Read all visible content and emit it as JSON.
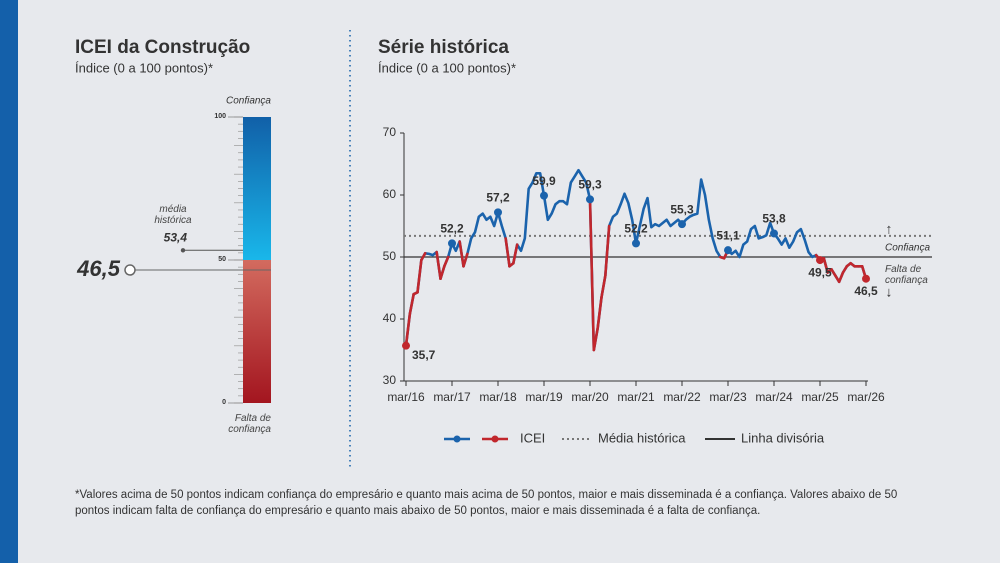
{
  "chart_data": [
    {
      "type": "gauge",
      "title": "ICEI da Construção",
      "subtitle": "Índice (0 a 100 pontos)*",
      "ylim": [
        0,
        100
      ],
      "yticks": [
        0,
        50,
        100
      ],
      "value": 46.5,
      "value_label": "46,5",
      "value_color": "#c1272d",
      "average": {
        "label": "média histórica",
        "value": 53.4,
        "value_label": "53,4"
      },
      "upper_label": "Confiança",
      "lower_label": "Falta de confiança",
      "upper_color": "#1160a8",
      "lower_color": "#b3262d"
    },
    {
      "type": "line",
      "title": "Série histórica",
      "subtitle": "Índice (0 a 100 pontos)*",
      "categories": [
        "mar/16",
        null,
        null,
        null,
        null,
        null,
        null,
        null,
        null,
        null,
        null,
        null,
        "mar/17",
        null,
        null,
        null,
        null,
        null,
        null,
        null,
        null,
        null,
        null,
        null,
        "mar/18",
        null,
        null,
        null,
        null,
        null,
        null,
        null,
        null,
        null,
        null,
        null,
        "mar/19",
        null,
        null,
        null,
        null,
        null,
        null,
        null,
        null,
        null,
        null,
        null,
        "mar/20",
        null,
        null,
        null,
        null,
        null,
        null,
        null,
        null,
        null,
        null,
        null,
        "mar/21",
        null,
        null,
        null,
        null,
        null,
        null,
        null,
        null,
        null,
        null,
        null,
        "mar/22",
        null,
        null,
        null,
        null,
        null,
        null,
        null,
        null,
        null,
        null,
        null,
        "mar/23",
        null,
        null,
        null,
        null,
        null,
        null,
        null,
        null,
        null,
        null,
        null,
        "mar/24",
        null,
        null,
        null,
        null,
        null,
        null,
        null,
        null,
        null,
        null,
        null,
        "mar/25",
        null,
        null,
        null,
        null,
        null,
        null,
        null,
        null,
        null,
        null,
        null,
        "mar/26"
      ],
      "series": [
        {
          "name": "ICEI",
          "color": "#1b63ac",
          "color_below": "#c1272d",
          "values": [
            35.7,
            40.8,
            44,
            44.3,
            49.5,
            50.6,
            50.5,
            50.3,
            50.8,
            46.5,
            48.5,
            50,
            52.2,
            51,
            52.5,
            48.5,
            50.5,
            53,
            54,
            56.5,
            57,
            56,
            56.5,
            55,
            57.2,
            55,
            53,
            48.5,
            49,
            52,
            51,
            53,
            61,
            62,
            63.5,
            63.5,
            59.9,
            56,
            57,
            58.5,
            59,
            59,
            58.5,
            62,
            63,
            64,
            63,
            62,
            59.3,
            35,
            38.5,
            43.5,
            47,
            55,
            56.5,
            57,
            58.5,
            60.2,
            58.7,
            56,
            52.2,
            55,
            57.8,
            59.5,
            54.8,
            55.3,
            55,
            55.5,
            56,
            55,
            55.5,
            56,
            55.3,
            56,
            56.5,
            56.8,
            57,
            62.5,
            60,
            56,
            53,
            51,
            50,
            49.8,
            51.1,
            50.5,
            51,
            50,
            52,
            52.5,
            54.5,
            55,
            53,
            53.2,
            53.5,
            55.5,
            53.8,
            53,
            52,
            53,
            51.5,
            52.5,
            54,
            54.5,
            52.8,
            50.8,
            50,
            50.3,
            49.5,
            49.8,
            47.5,
            48,
            47,
            46,
            47.5,
            48.5,
            49,
            48.5,
            48.5,
            48.5,
            46.5
          ],
          "value_labels": [
            "35,7",
            null,
            null,
            null,
            null,
            null,
            null,
            null,
            null,
            null,
            null,
            null,
            "52,2",
            null,
            null,
            null,
            null,
            null,
            null,
            null,
            null,
            null,
            null,
            null,
            "57,2",
            null,
            null,
            null,
            null,
            null,
            null,
            null,
            null,
            null,
            null,
            null,
            "59,9",
            null,
            null,
            null,
            null,
            null,
            null,
            null,
            null,
            null,
            null,
            null,
            "59,3",
            null,
            null,
            null,
            null,
            null,
            null,
            null,
            null,
            null,
            null,
            null,
            "52,2",
            null,
            null,
            null,
            null,
            null,
            null,
            null,
            null,
            null,
            null,
            null,
            "55,3",
            null,
            null,
            null,
            null,
            null,
            null,
            null,
            null,
            null,
            null,
            null,
            "51,1",
            null,
            null,
            null,
            null,
            null,
            null,
            null,
            null,
            null,
            null,
            null,
            "53,8",
            null,
            null,
            null,
            null,
            null,
            null,
            null,
            null,
            null,
            null,
            null,
            "49,5",
            null,
            null,
            null,
            null,
            null,
            null,
            null,
            null,
            null,
            null,
            null,
            "46,5"
          ]
        }
      ],
      "reference_lines": [
        {
          "name": "Média histórica",
          "value": 53.4,
          "style": "dotted",
          "color": "#777777"
        },
        {
          "name": "Linha divisória",
          "value": 50,
          "style": "solid",
          "color": "#333333"
        }
      ],
      "upper_label": "Confiança",
      "lower_label": "Falta de confiança",
      "ylim": [
        30,
        70
      ],
      "yticks": [
        30,
        40,
        50,
        60,
        70
      ]
    }
  ],
  "footnote": "*Valores acima de 50 pontos indicam confiança do empresário e quanto mais acima de 50 pontos, maior e mais disseminada é a confiança. Valores abaixo de 50 pontos indicam falta de confiança do empresário e quanto mais abaixo de 50 pontos, maior e mais disseminada é a falta de confiança."
}
